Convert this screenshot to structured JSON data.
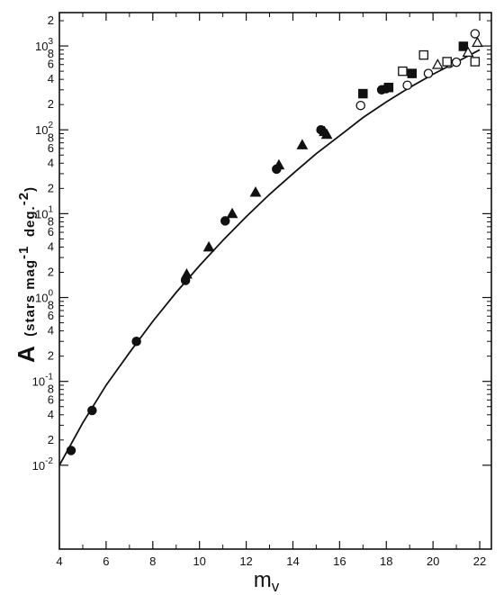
{
  "chart_data": {
    "type": "scatter",
    "title": "",
    "xlabel": "m",
    "xlabel_subscript": "v",
    "ylabel_main": "A",
    "ylabel_rest": "(stars mag",
    "ylabel_exp1": "-1",
    "ylabel_mid": "deg.",
    "ylabel_exp2": "-2",
    "ylabel_close": ")",
    "xlim": [
      4,
      22.5
    ],
    "ylim": [
      0.001,
      2500
    ],
    "yscale": "log",
    "grid": false,
    "x_ticks": [
      4,
      6,
      8,
      10,
      12,
      14,
      16,
      18,
      20,
      22
    ],
    "x_tick_labels": [
      "4",
      "6",
      "8",
      "10",
      "12",
      "14",
      "16",
      "18",
      "20",
      "22"
    ],
    "y_decades": [
      {
        "base": "10",
        "exp": "-2",
        "value": 0.01
      },
      {
        "base": "10",
        "exp": "-1",
        "value": 0.1
      },
      {
        "base": "10",
        "exp": "0",
        "value": 1
      },
      {
        "base": "10",
        "exp": "1",
        "value": 10
      },
      {
        "base": "10",
        "exp": "2",
        "value": 100
      },
      {
        "base": "10",
        "exp": "3",
        "value": 1000
      }
    ],
    "y_minor_labels": [
      "2",
      "4",
      "6",
      "8"
    ],
    "series": [
      {
        "marker": "filled-circle",
        "points": [
          [
            4.5,
            0.015
          ],
          [
            5.4,
            0.045
          ],
          [
            7.3,
            0.3
          ],
          [
            9.4,
            1.6
          ],
          [
            11.1,
            8.2
          ],
          [
            13.3,
            34
          ],
          [
            15.2,
            100
          ],
          [
            17.8,
            300
          ],
          [
            18.0,
            310
          ]
        ]
      },
      {
        "marker": "filled-triangle",
        "points": [
          [
            9.45,
            1.9
          ],
          [
            10.4,
            4.0
          ],
          [
            11.4,
            10
          ],
          [
            12.4,
            18
          ],
          [
            13.4,
            38
          ],
          [
            14.4,
            66
          ],
          [
            15.35,
            95
          ],
          [
            15.45,
            88
          ]
        ]
      },
      {
        "marker": "filled-square",
        "points": [
          [
            17.0,
            270
          ],
          [
            18.1,
            320
          ],
          [
            19.1,
            470
          ],
          [
            21.3,
            990
          ]
        ]
      },
      {
        "marker": "open-circle",
        "points": [
          [
            16.9,
            195
          ],
          [
            18.9,
            340
          ],
          [
            19.8,
            470
          ],
          [
            20.7,
            620
          ],
          [
            21.0,
            640
          ],
          [
            21.8,
            1400
          ]
        ]
      },
      {
        "marker": "open-triangle",
        "points": [
          [
            20.2,
            600
          ],
          [
            21.5,
            840
          ],
          [
            21.9,
            1100
          ]
        ]
      },
      {
        "marker": "open-square",
        "points": [
          [
            18.7,
            500
          ],
          [
            19.6,
            780
          ],
          [
            20.6,
            650
          ],
          [
            21.8,
            650
          ]
        ]
      }
    ],
    "fit_curve": {
      "x": [
        4.0,
        5.0,
        6.0,
        7.0,
        8.0,
        9.0,
        10.0,
        11.0,
        12.0,
        13.0,
        14.0,
        15.0,
        16.0,
        17.0,
        18.0,
        19.0,
        20.0,
        21.0,
        22.0
      ],
      "y": [
        0.01,
        0.032,
        0.09,
        0.22,
        0.52,
        1.15,
        2.4,
        4.8,
        9.2,
        17,
        30,
        52,
        85,
        140,
        215,
        320,
        460,
        640,
        900
      ]
    },
    "colors": {
      "ink": "#111111",
      "background": "#ffffff"
    }
  }
}
